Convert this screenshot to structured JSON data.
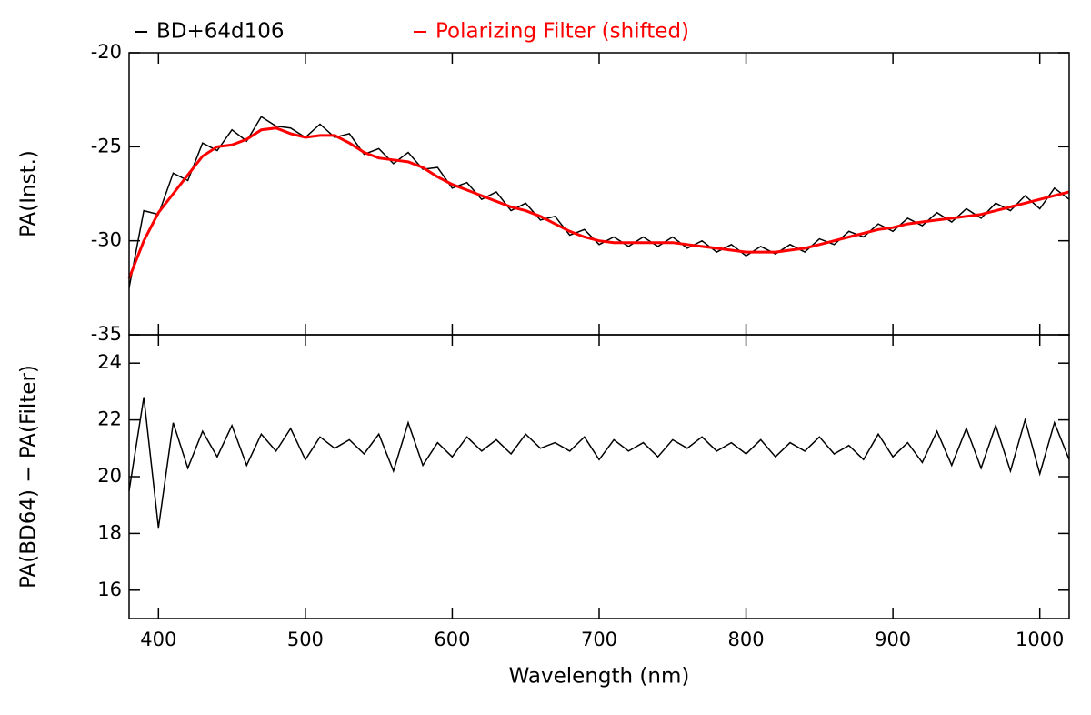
{
  "chart_data": [
    {
      "type": "line",
      "ylabel": "PA(Inst.)",
      "xlim": [
        380,
        1020
      ],
      "xticks": [
        400,
        500,
        600,
        700,
        800,
        900,
        1000
      ],
      "ylim": [
        -35,
        -20
      ],
      "yticks": [
        -35,
        -30,
        -25,
        -20
      ],
      "x": [
        380,
        390,
        400,
        410,
        420,
        430,
        440,
        450,
        460,
        470,
        480,
        490,
        500,
        510,
        520,
        530,
        540,
        550,
        560,
        570,
        580,
        590,
        600,
        610,
        620,
        630,
        640,
        650,
        660,
        670,
        680,
        690,
        700,
        710,
        720,
        730,
        740,
        750,
        760,
        770,
        780,
        790,
        800,
        810,
        820,
        830,
        840,
        850,
        860,
        870,
        880,
        890,
        900,
        910,
        920,
        930,
        940,
        950,
        960,
        970,
        980,
        990,
        1000,
        1010,
        1020
      ],
      "series": [
        {
          "name": "BD+64d106",
          "color": "#000000",
          "values": [
            -32.5,
            -28.4,
            -28.6,
            -26.4,
            -26.8,
            -24.8,
            -25.2,
            -24.1,
            -24.7,
            -23.4,
            -23.9,
            -24.0,
            -24.5,
            -23.8,
            -24.5,
            -24.3,
            -25.4,
            -25.1,
            -25.9,
            -25.3,
            -26.2,
            -26.1,
            -27.2,
            -26.9,
            -27.8,
            -27.4,
            -28.4,
            -28.0,
            -28.9,
            -28.7,
            -29.7,
            -29.4,
            -30.2,
            -29.8,
            -30.3,
            -29.8,
            -30.3,
            -29.8,
            -30.4,
            -30.0,
            -30.6,
            -30.2,
            -30.8,
            -30.3,
            -30.7,
            -30.2,
            -30.6,
            -29.9,
            -30.2,
            -29.5,
            -29.8,
            -29.1,
            -29.5,
            -28.8,
            -29.2,
            -28.5,
            -29.0,
            -28.3,
            -28.8,
            -28.0,
            -28.4,
            -27.6,
            -28.3,
            -27.2,
            -27.8
          ]
        },
        {
          "name": "Polarizing Filter (shifted)",
          "color": "#ff0000",
          "values": [
            -32,
            -30,
            -28.5,
            -27.5,
            -26.5,
            -25.5,
            -25,
            -24.9,
            -24.6,
            -24.1,
            -24.0,
            -24.3,
            -24.5,
            -24.4,
            -24.4,
            -24.8,
            -25.3,
            -25.6,
            -25.7,
            -25.8,
            -26.1,
            -26.6,
            -27.0,
            -27.3,
            -27.6,
            -27.9,
            -28.2,
            -28.4,
            -28.7,
            -29.1,
            -29.5,
            -29.8,
            -30.0,
            -30.1,
            -30.1,
            -30.1,
            -30.1,
            -30.1,
            -30.2,
            -30.3,
            -30.4,
            -30.5,
            -30.6,
            -30.6,
            -30.6,
            -30.5,
            -30.4,
            -30.2,
            -30.0,
            -29.8,
            -29.6,
            -29.4,
            -29.3,
            -29.1,
            -29.0,
            -28.9,
            -28.8,
            -28.7,
            -28.6,
            -28.4,
            -28.2,
            -28.0,
            -27.8,
            -27.6,
            -27.4
          ]
        }
      ]
    },
    {
      "type": "line",
      "ylabel": "PA(BD64) − PA(Filter)",
      "xlabel": "Wavelength (nm)",
      "xlim": [
        380,
        1020
      ],
      "xticks": [
        400,
        500,
        600,
        700,
        800,
        900,
        1000
      ],
      "ylim": [
        15,
        25
      ],
      "yticks": [
        16,
        18,
        20,
        22,
        24
      ],
      "x": [
        380,
        390,
        400,
        410,
        420,
        430,
        440,
        450,
        460,
        470,
        480,
        490,
        500,
        510,
        520,
        530,
        540,
        550,
        560,
        570,
        580,
        590,
        600,
        610,
        620,
        630,
        640,
        650,
        660,
        670,
        680,
        690,
        700,
        710,
        720,
        730,
        740,
        750,
        760,
        770,
        780,
        790,
        800,
        810,
        820,
        830,
        840,
        850,
        860,
        870,
        880,
        890,
        900,
        910,
        920,
        930,
        940,
        950,
        960,
        970,
        980,
        990,
        1000,
        1010,
        1020
      ],
      "series": [
        {
          "color": "#000000",
          "values": [
            19.5,
            22.8,
            18.2,
            21.9,
            20.3,
            21.6,
            20.7,
            21.8,
            20.4,
            21.5,
            20.9,
            21.7,
            20.6,
            21.4,
            21.0,
            21.3,
            20.8,
            21.5,
            20.2,
            21.9,
            20.4,
            21.2,
            20.7,
            21.4,
            20.9,
            21.3,
            20.8,
            21.5,
            21.0,
            21.2,
            20.9,
            21.4,
            20.6,
            21.3,
            20.9,
            21.2,
            20.7,
            21.3,
            21.0,
            21.4,
            20.9,
            21.2,
            20.8,
            21.3,
            20.7,
            21.2,
            20.9,
            21.4,
            20.8,
            21.1,
            20.6,
            21.5,
            20.7,
            21.2,
            20.5,
            21.6,
            20.4,
            21.7,
            20.3,
            21.8,
            20.2,
            22.0,
            20.1,
            21.9,
            20.6
          ]
        }
      ]
    }
  ]
}
